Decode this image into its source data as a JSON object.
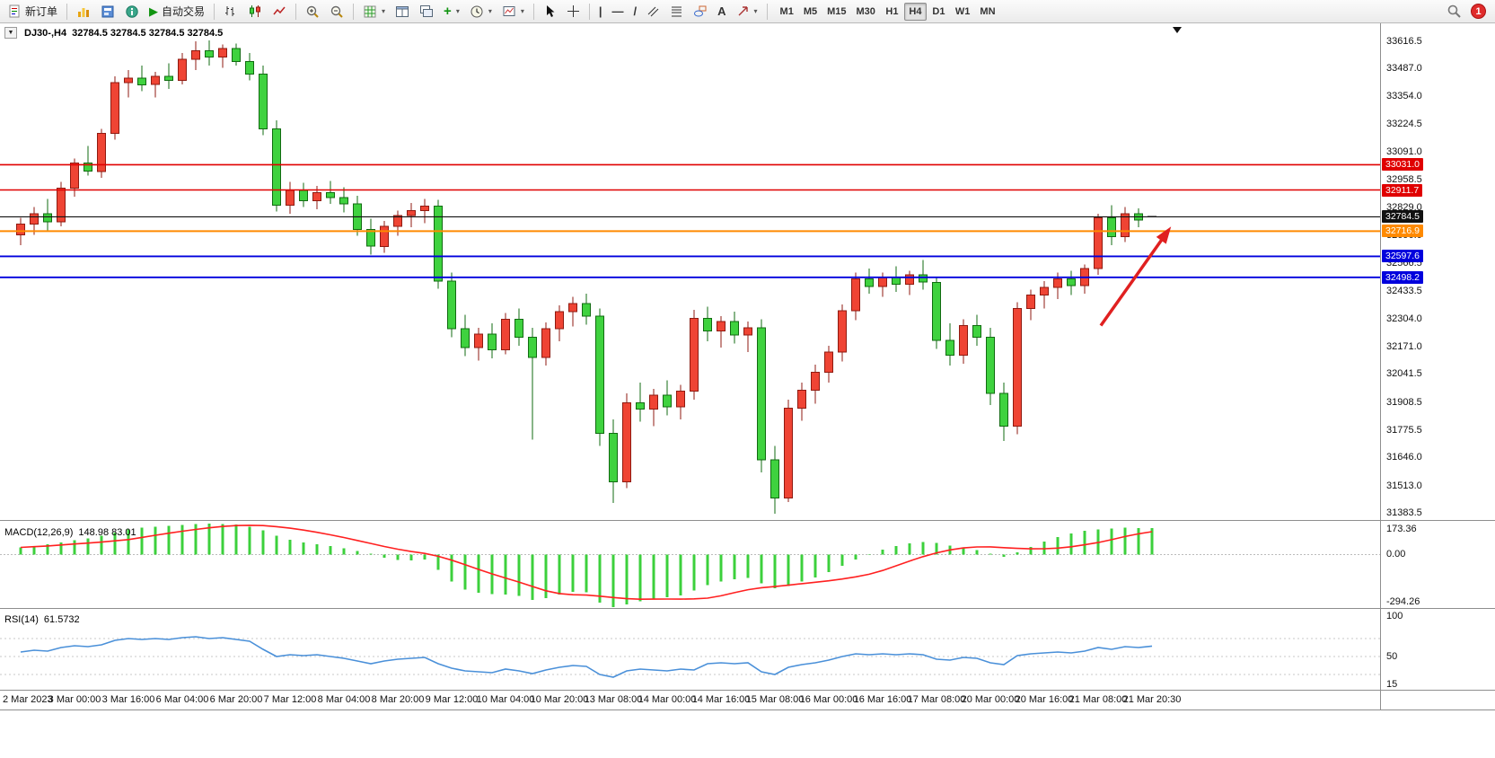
{
  "toolbar": {
    "new_order_label": "新订单",
    "autotrading_label": "自动交易",
    "notification_count": "1",
    "timeframes": [
      {
        "label": "M1",
        "active": false
      },
      {
        "label": "M5",
        "active": false
      },
      {
        "label": "M15",
        "active": false
      },
      {
        "label": "M30",
        "active": false
      },
      {
        "label": "H1",
        "active": false
      },
      {
        "label": "H4",
        "active": true
      },
      {
        "label": "D1",
        "active": false
      },
      {
        "label": "W1",
        "active": false
      },
      {
        "label": "MN",
        "active": false
      }
    ]
  },
  "icons": {
    "dropdown": "▾",
    "oneclick": "▼",
    "play": "▶",
    "plus": "+",
    "vline": "|",
    "hline": "—",
    "trendline": "/",
    "text_tool": "A"
  },
  "chart": {
    "title_symbol": "DJ30-,H4",
    "title_ohlc": "32784.5 32784.5 32784.5 32784.5",
    "price_axis_ticks": [
      33616.5,
      33487.0,
      33354.0,
      33224.5,
      33091.0,
      32958.5,
      32829.0,
      32696.0,
      32566.5,
      32433.5,
      32304.0,
      32171.0,
      32041.5,
      31908.5,
      31775.5,
      31646.0,
      31513.0,
      31383.5
    ]
  },
  "macd": {
    "title": "MACD(12,26,9)",
    "values": "148.98 83.01"
  },
  "rsi": {
    "title": "RSI(14)",
    "value": "61.5732"
  },
  "time_axis": [
    "2 Mar 2023",
    "3 Mar 00:00",
    "3 Mar 16:00",
    "6 Mar 04:00",
    "6 Mar 20:00",
    "7 Mar 12:00",
    "8 Mar 04:00",
    "8 Mar 20:00",
    "9 Mar 12:00",
    "10 Mar 04:00",
    "10 Mar 20:00",
    "13 Mar 08:00",
    "14 Mar 00:00",
    "14 Mar 16:00",
    "15 Mar 08:00",
    "16 Mar 00:00",
    "16 Mar 16:00",
    "17 Mar 08:00",
    "20 Mar 00:00",
    "20 Mar 16:00",
    "21 Mar 08:00",
    "21 Mar 20:30"
  ],
  "style": {
    "up_fill": "#ef4434",
    "up_stroke": "#8f1a10",
    "down_fill": "#3fd23f",
    "down_stroke": "#116b11",
    "macd_hist": "#3cd03c",
    "macd_signal": "#ff2020",
    "rsi_line": "#4a90d9",
    "doji": "#111111"
  },
  "chart_data": [
    {
      "type": "candlestick",
      "name": "DJ30- H4 price",
      "ylim": [
        31350,
        33700
      ],
      "up_means": "red (CN convention)",
      "ohlc": [
        [
          32700,
          32780,
          32650,
          32750
        ],
        [
          32750,
          32830,
          32700,
          32800
        ],
        [
          32800,
          32870,
          32720,
          32760
        ],
        [
          32760,
          32950,
          32740,
          32920
        ],
        [
          32920,
          33060,
          32880,
          33040
        ],
        [
          33040,
          33120,
          32980,
          33000
        ],
        [
          33000,
          33200,
          32970,
          33180
        ],
        [
          33180,
          33450,
          33150,
          33420
        ],
        [
          33420,
          33480,
          33350,
          33440
        ],
        [
          33440,
          33500,
          33380,
          33410
        ],
        [
          33410,
          33470,
          33350,
          33450
        ],
        [
          33450,
          33510,
          33390,
          33430
        ],
        [
          33430,
          33560,
          33410,
          33530
        ],
        [
          33530,
          33615,
          33480,
          33570
        ],
        [
          33570,
          33620,
          33500,
          33540
        ],
        [
          33540,
          33600,
          33490,
          33580
        ],
        [
          33580,
          33605,
          33500,
          33520
        ],
        [
          33520,
          33560,
          33430,
          33460
        ],
        [
          33460,
          33500,
          33170,
          33200
        ],
        [
          33200,
          33240,
          32810,
          32840
        ],
        [
          32840,
          32950,
          32800,
          32910
        ],
        [
          32910,
          32945,
          32830,
          32860
        ],
        [
          32860,
          32930,
          32820,
          32900
        ],
        [
          32900,
          32955,
          32845,
          32875
        ],
        [
          32875,
          32925,
          32805,
          32845
        ],
        [
          32845,
          32885,
          32695,
          32725
        ],
        [
          32725,
          32775,
          32605,
          32645
        ],
        [
          32645,
          32765,
          32615,
          32740
        ],
        [
          32740,
          32815,
          32695,
          32790
        ],
        [
          32790,
          32850,
          32735,
          32815
        ],
        [
          32815,
          32870,
          32755,
          32835
        ],
        [
          32835,
          32865,
          32445,
          32480
        ],
        [
          32480,
          32520,
          32215,
          32255
        ],
        [
          32255,
          32320,
          32125,
          32165
        ],
        [
          32165,
          32260,
          32105,
          32230
        ],
        [
          32230,
          32280,
          32115,
          32155
        ],
        [
          32155,
          32330,
          32135,
          32300
        ],
        [
          32300,
          32350,
          32175,
          32215
        ],
        [
          32215,
          32260,
          31730,
          32120
        ],
        [
          32120,
          32285,
          32080,
          32255
        ],
        [
          32255,
          32365,
          32195,
          32335
        ],
        [
          32335,
          32405,
          32265,
          32375
        ],
        [
          32375,
          32420,
          32275,
          32315
        ],
        [
          32315,
          32350,
          31700,
          31760
        ],
        [
          31760,
          31825,
          31430,
          31530
        ],
        [
          31530,
          31950,
          31500,
          31905
        ],
        [
          31905,
          32000,
          31815,
          31875
        ],
        [
          31875,
          31970,
          31795,
          31940
        ],
        [
          31940,
          32010,
          31845,
          31885
        ],
        [
          31885,
          31990,
          31825,
          31960
        ],
        [
          31960,
          32345,
          31920,
          32305
        ],
        [
          32305,
          32360,
          32195,
          32245
        ],
        [
          32245,
          32315,
          32165,
          32290
        ],
        [
          32290,
          32335,
          32185,
          32225
        ],
        [
          32225,
          32290,
          32145,
          32260
        ],
        [
          32260,
          32300,
          31575,
          31635
        ],
        [
          31635,
          31700,
          31380,
          31455
        ],
        [
          31455,
          31920,
          31435,
          31880
        ],
        [
          31880,
          32000,
          31820,
          31965
        ],
        [
          31965,
          32085,
          31900,
          32050
        ],
        [
          32050,
          32175,
          32000,
          32145
        ],
        [
          32145,
          32370,
          32100,
          32340
        ],
        [
          32340,
          32520,
          32295,
          32490
        ],
        [
          32490,
          32540,
          32420,
          32455
        ],
        [
          32455,
          32520,
          32405,
          32500
        ],
        [
          32500,
          32550,
          32430,
          32465
        ],
        [
          32465,
          32530,
          32415,
          32510
        ],
        [
          32510,
          32580,
          32440,
          32475
        ],
        [
          32475,
          32500,
          32160,
          32200
        ],
        [
          32200,
          32280,
          32080,
          32130
        ],
        [
          32130,
          32300,
          32090,
          32270
        ],
        [
          32270,
          32320,
          32175,
          32215
        ],
        [
          32215,
          32260,
          31895,
          31950
        ],
        [
          31950,
          32000,
          31725,
          31795
        ],
        [
          31795,
          32380,
          31755,
          32350
        ],
        [
          32350,
          32440,
          32295,
          32415
        ],
        [
          32415,
          32480,
          32350,
          32450
        ],
        [
          32450,
          32520,
          32395,
          32490
        ],
        [
          32490,
          32530,
          32415,
          32460
        ],
        [
          32460,
          32560,
          32420,
          32540
        ],
        [
          32540,
          32800,
          32510,
          32780
        ],
        [
          32780,
          32840,
          32650,
          32690
        ],
        [
          32690,
          32830,
          32665,
          32800
        ],
        [
          32800,
          32825,
          32735,
          32770
        ],
        [
          32784.5,
          32784.5,
          32784.5,
          32784.5
        ]
      ],
      "hlines": [
        {
          "price": 33031.0,
          "label": "33031.0",
          "color": "#e00000",
          "width": 1.6
        },
        {
          "price": 32911.7,
          "label": "32911.7",
          "color": "#e00000",
          "width": 1.6
        },
        {
          "price": 32784.5,
          "label": "32784.5",
          "color": "#111111",
          "width": 1.2
        },
        {
          "price": 32716.9,
          "label": "32716.9",
          "color": "#ff8a00",
          "width": 2
        },
        {
          "price": 32597.6,
          "label": "32597.6",
          "color": "#0000dd",
          "width": 1.8
        },
        {
          "price": 32498.2,
          "label": "32498.2",
          "color": "#0000dd",
          "width": 1.8
        }
      ],
      "annotations": [
        {
          "type": "arrow",
          "from_index": 80.2,
          "from_price": 32270,
          "to_index": 85.3,
          "to_price": 32728,
          "color": "#e02020"
        }
      ]
    },
    {
      "type": "bar",
      "name": "MACD(12,26,9) histogram",
      "ylim": [
        -294.26,
        173.36
      ],
      "axis_labels": [
        {
          "v": 173.36,
          "t": "173.36"
        },
        {
          "v": 0,
          "t": "0.00"
        },
        {
          "v": -294.26,
          "t": "-294.26"
        }
      ],
      "values": [
        40,
        48,
        57,
        69,
        81,
        90,
        105,
        123,
        141,
        151,
        157,
        161,
        166,
        171,
        173,
        172,
        168,
        157,
        135,
        105,
        84,
        69,
        57,
        47,
        35,
        21,
        5,
        -18,
        -30,
        -32,
        -28,
        -85,
        -150,
        -195,
        -215,
        -222,
        -225,
        -232,
        -255,
        -245,
        -225,
        -210,
        -212,
        -268,
        -294,
        -280,
        -262,
        -250,
        -240,
        -228,
        -200,
        -172,
        -152,
        -138,
        -130,
        -162,
        -188,
        -175,
        -152,
        -128,
        -98,
        -62,
        -28,
        2,
        28,
        48,
        62,
        70,
        64,
        50,
        36,
        24,
        4,
        -12,
        12,
        42,
        72,
        98,
        118,
        132,
        140,
        146,
        150,
        148,
        148.98
      ],
      "signal_method": "sma9"
    },
    {
      "type": "line",
      "name": "RSI(14)",
      "ylim": [
        13,
        101
      ],
      "axis_labels": [
        {
          "v": 100,
          "t": "100"
        },
        {
          "v": 50,
          "t": "50"
        },
        {
          "v": 15,
          "t": "15"
        }
      ],
      "levels": [
        70,
        50,
        30
      ],
      "values": [
        55,
        57,
        56,
        60,
        62,
        61,
        63,
        68,
        70,
        69,
        70,
        69,
        71,
        72,
        70,
        71,
        69,
        67,
        58,
        50,
        52,
        51,
        52,
        50,
        48,
        45,
        42,
        45,
        47,
        48,
        49,
        42,
        37,
        34,
        33,
        32,
        36,
        34,
        31,
        35,
        38,
        40,
        39,
        30,
        27,
        34,
        36,
        35,
        34,
        36,
        35,
        42,
        43,
        42,
        43,
        33,
        30,
        38,
        41,
        43,
        46,
        50,
        53,
        52,
        53,
        52,
        53,
        52,
        47,
        46,
        49,
        48,
        43,
        41,
        51,
        53,
        54,
        55,
        54,
        56,
        60,
        58,
        61,
        60,
        61.6
      ]
    }
  ]
}
